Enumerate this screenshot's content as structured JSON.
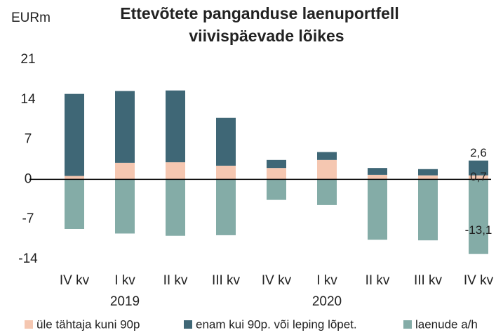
{
  "chart_data": {
    "type": "bar",
    "title": [
      "Ettevõtete panganduse laenuportfell",
      "viivispäevade lõikes"
    ],
    "y_label": "EURm",
    "categories": [
      "IV kv",
      "I kv",
      "II kv",
      "III kv",
      "IV kv",
      "I kv",
      "II kv",
      "III kv",
      "IV kv"
    ],
    "years": [
      null,
      "2019",
      null,
      null,
      null,
      "2020",
      null,
      null,
      null
    ],
    "stacked": true,
    "series": [
      {
        "name": "üle tähtaja kuni 90p",
        "color": "#f5c7b1",
        "values": [
          0.6,
          2.9,
          3.0,
          2.4,
          2.0,
          3.4,
          0.8,
          0.7,
          0.7
        ],
        "value_labels": [
          null,
          null,
          null,
          null,
          null,
          null,
          null,
          null,
          "0,7"
        ]
      },
      {
        "name": "enam kui 90p. või leping lõpet.",
        "color": "#3f6776",
        "values": [
          14.4,
          12.6,
          12.6,
          8.4,
          1.4,
          1.4,
          1.2,
          1.1,
          2.6
        ],
        "value_labels": [
          null,
          null,
          null,
          null,
          null,
          null,
          null,
          null,
          "2,6"
        ]
      },
      {
        "name": "laenude a/h",
        "color": "#84aca7",
        "values": [
          -8.7,
          -9.5,
          -9.9,
          -9.8,
          -3.6,
          -4.5,
          -10.6,
          -10.7,
          -13.1
        ],
        "value_labels": [
          null,
          null,
          null,
          null,
          null,
          null,
          null,
          null,
          "-13,1"
        ]
      }
    ],
    "ylim": [
      -14,
      21
    ],
    "yticks": [
      21,
      14,
      7,
      0,
      -7,
      -14
    ],
    "grid": false
  }
}
